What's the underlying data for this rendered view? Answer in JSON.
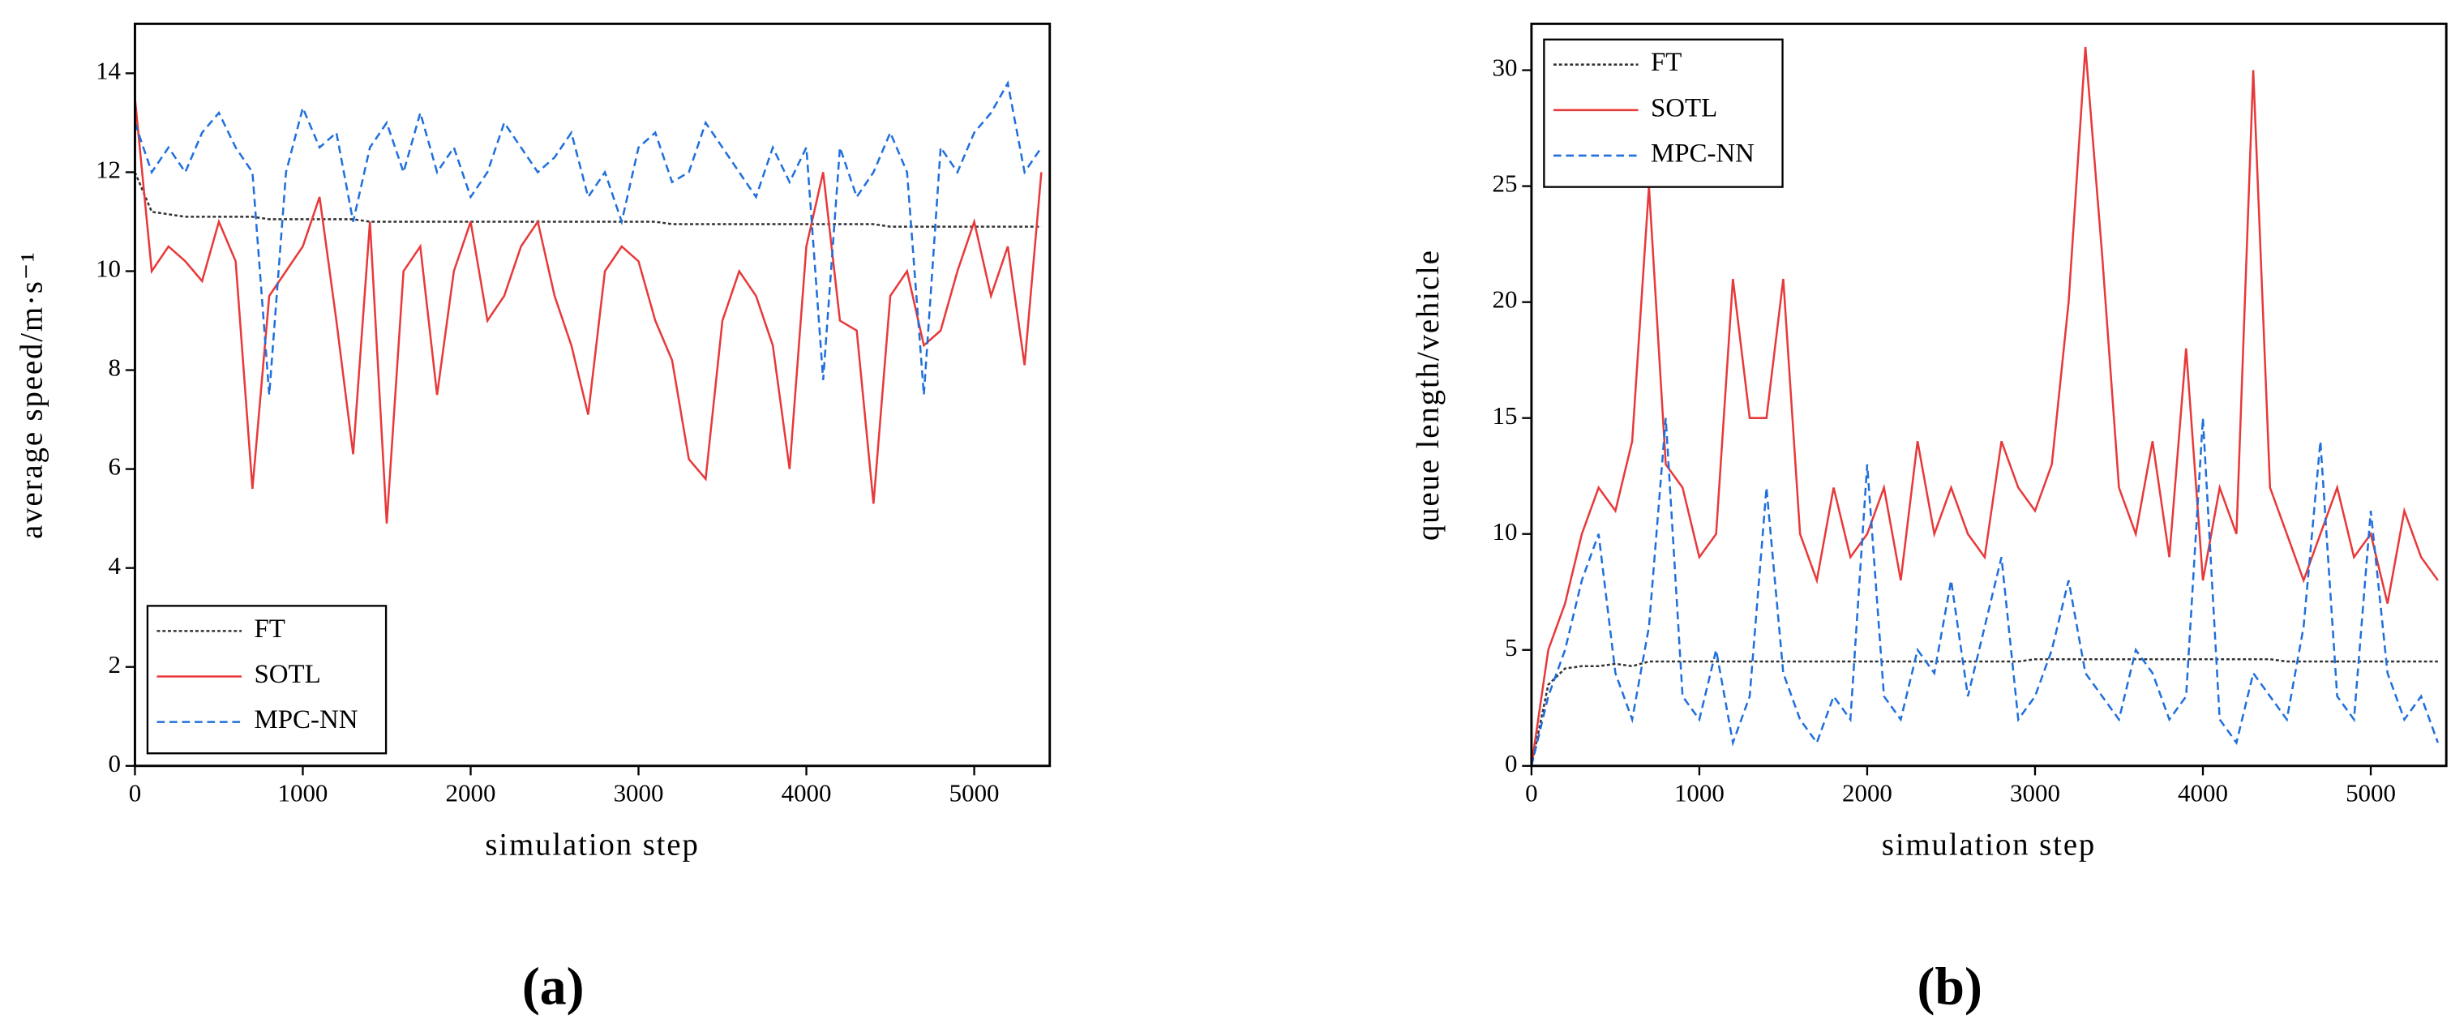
{
  "chart_data": [
    {
      "type": "line",
      "label": "(a)",
      "xlabel": "simulation step",
      "ylabel": "average speed/m·s⁻¹",
      "xlim": [
        0,
        5450
      ],
      "ylim": [
        0,
        15
      ],
      "xticks": [
        0,
        1000,
        2000,
        3000,
        4000,
        5000
      ],
      "yticks": [
        0,
        2,
        4,
        6,
        8,
        10,
        12,
        14
      ],
      "legend": "lower left",
      "x": [
        0,
        100,
        200,
        300,
        400,
        500,
        600,
        700,
        800,
        900,
        1000,
        1100,
        1200,
        1300,
        1400,
        1500,
        1600,
        1700,
        1800,
        1900,
        2000,
        2100,
        2200,
        2300,
        2400,
        2500,
        2600,
        2700,
        2800,
        2900,
        3000,
        3100,
        3200,
        3300,
        3400,
        3500,
        3600,
        3700,
        3800,
        3900,
        4000,
        4100,
        4200,
        4300,
        4400,
        4500,
        4600,
        4700,
        4800,
        4900,
        5000,
        5100,
        5200,
        5300,
        5400
      ],
      "series": [
        {
          "name": "FT",
          "color": "#333333",
          "dash": "dotted",
          "values": [
            12,
            11.2,
            11.15,
            11.1,
            11.1,
            11.1,
            11.1,
            11.1,
            11.05,
            11.05,
            11.05,
            11.05,
            11.05,
            11.05,
            11,
            11,
            11,
            11,
            11,
            11,
            11,
            11,
            11,
            11,
            11,
            11,
            11,
            11,
            11,
            11,
            11,
            11,
            10.95,
            10.95,
            10.95,
            10.95,
            10.95,
            10.95,
            10.95,
            10.95,
            10.95,
            10.95,
            10.95,
            10.95,
            10.95,
            10.9,
            10.9,
            10.9,
            10.9,
            10.9,
            10.9,
            10.9,
            10.9,
            10.9,
            10.9
          ]
        },
        {
          "name": "SOTL",
          "color": "#e8393a",
          "dash": "solid",
          "values": [
            13.5,
            10,
            10.5,
            10.2,
            9.8,
            11,
            10.2,
            5.6,
            9.5,
            10,
            10.5,
            11.5,
            9,
            6.3,
            11,
            4.9,
            10,
            10.5,
            7.5,
            10,
            11,
            9,
            9.5,
            10.5,
            11,
            9.5,
            8.5,
            7.1,
            10,
            10.5,
            10.2,
            9,
            8.2,
            6.2,
            5.8,
            9,
            10,
            9.5,
            8.5,
            6,
            10.5,
            12,
            9,
            8.8,
            5.3,
            9.5,
            10,
            8.5,
            8.8,
            10,
            11,
            9.5,
            10.5,
            8.1,
            12
          ]
        },
        {
          "name": "MPC-NN",
          "color": "#1f6fdc",
          "dash": "dashed",
          "values": [
            13,
            12,
            12.5,
            12,
            12.8,
            13.2,
            12.5,
            12,
            7.5,
            12,
            13.3,
            12.5,
            12.8,
            11,
            12.5,
            13,
            12,
            13.2,
            12,
            12.5,
            11.5,
            12,
            13,
            12.5,
            12,
            12.3,
            12.8,
            11.5,
            12,
            11,
            12.5,
            12.8,
            11.8,
            12,
            13,
            12.5,
            12,
            11.5,
            12.5,
            11.8,
            12.5,
            7.8,
            12.5,
            11.5,
            12,
            12.8,
            12,
            7.5,
            12.5,
            12,
            12.8,
            13.2,
            13.8,
            12,
            12.5
          ]
        }
      ]
    },
    {
      "type": "line",
      "label": "(b)",
      "xlabel": "simulation step",
      "ylabel": "queue length/vehicle",
      "xlim": [
        0,
        5450
      ],
      "ylim": [
        0,
        32
      ],
      "xticks": [
        0,
        1000,
        2000,
        3000,
        4000,
        5000
      ],
      "yticks": [
        0,
        5,
        10,
        15,
        20,
        25,
        30
      ],
      "legend": "upper left",
      "x": [
        0,
        100,
        200,
        300,
        400,
        500,
        600,
        700,
        800,
        900,
        1000,
        1100,
        1200,
        1300,
        1400,
        1500,
        1600,
        1700,
        1800,
        1900,
        2000,
        2100,
        2200,
        2300,
        2400,
        2500,
        2600,
        2700,
        2800,
        2900,
        3000,
        3100,
        3200,
        3300,
        3400,
        3500,
        3600,
        3700,
        3800,
        3900,
        4000,
        4100,
        4200,
        4300,
        4400,
        4500,
        4600,
        4700,
        4800,
        4900,
        5000,
        5100,
        5200,
        5300,
        5400
      ],
      "series": [
        {
          "name": "FT",
          "color": "#333333",
          "dash": "dotted",
          "values": [
            0,
            3.5,
            4.2,
            4.3,
            4.3,
            4.4,
            4.3,
            4.5,
            4.5,
            4.5,
            4.5,
            4.5,
            4.5,
            4.5,
            4.5,
            4.5,
            4.5,
            4.5,
            4.5,
            4.5,
            4.5,
            4.5,
            4.5,
            4.5,
            4.5,
            4.5,
            4.5,
            4.5,
            4.5,
            4.5,
            4.6,
            4.6,
            4.6,
            4.6,
            4.6,
            4.6,
            4.6,
            4.6,
            4.6,
            4.6,
            4.6,
            4.6,
            4.6,
            4.6,
            4.6,
            4.5,
            4.5,
            4.5,
            4.5,
            4.5,
            4.5,
            4.5,
            4.5,
            4.5,
            4.5
          ]
        },
        {
          "name": "SOTL",
          "color": "#e8393a",
          "dash": "solid",
          "values": [
            0,
            5,
            7,
            10,
            12,
            11,
            14,
            25,
            13,
            12,
            9,
            10,
            21,
            15,
            15,
            21,
            10,
            8,
            12,
            9,
            10,
            12,
            8,
            14,
            10,
            12,
            10,
            9,
            14,
            12,
            11,
            13,
            20,
            31,
            22,
            12,
            10,
            14,
            9,
            18,
            8,
            12,
            10,
            30,
            12,
            10,
            8,
            10,
            12,
            9,
            10,
            7,
            11,
            9,
            8
          ]
        },
        {
          "name": "MPC-NN",
          "color": "#1f6fdc",
          "dash": "dashed",
          "values": [
            0,
            3,
            5,
            8,
            10,
            4,
            2,
            6,
            15,
            3,
            2,
            5,
            1,
            3,
            12,
            4,
            2,
            1,
            3,
            2,
            13,
            3,
            2,
            5,
            4,
            8,
            3,
            6,
            9,
            2,
            3,
            5,
            8,
            4,
            3,
            2,
            5,
            4,
            2,
            3,
            15,
            2,
            1,
            4,
            3,
            2,
            6,
            14,
            3,
            2,
            11,
            4,
            2,
            3,
            1
          ]
        }
      ]
    }
  ]
}
